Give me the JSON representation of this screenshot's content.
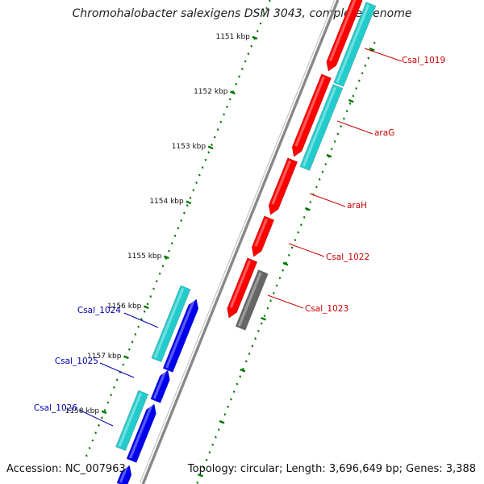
{
  "title": "Chromohalobacter salexigens DSM 3043, complete genome",
  "accession_text": "Accession: NC_007963",
  "summary_text": "Topology: circular; Length: 3,696,649 bp; Genes: 3,388",
  "colors": {
    "forward_cds": "#ff0000",
    "reverse_cds": "#0000ee",
    "gene_track": "#22cccc",
    "pseudogene": "#666666",
    "backbone": "#888888",
    "ticks": "#007700",
    "label_forward": "#cc0000",
    "label_reverse": "#0000aa"
  },
  "ticks": [
    {
      "label": "1151 kbp"
    },
    {
      "label": "1152 kbp"
    },
    {
      "label": "1153 kbp"
    },
    {
      "label": "1154 kbp"
    },
    {
      "label": "1155 kbp"
    },
    {
      "label": "1156 kbp"
    },
    {
      "label": "1157 kbp"
    },
    {
      "label": "1158 kbp"
    }
  ],
  "genes": [
    {
      "label": "Csal_1019",
      "strand": "forward"
    },
    {
      "label": "araG",
      "strand": "forward"
    },
    {
      "label": "araH",
      "strand": "forward"
    },
    {
      "label": "Csal_1022",
      "strand": "forward"
    },
    {
      "label": "Csal_1023",
      "strand": "forward"
    },
    {
      "label": "Csal_1024",
      "strand": "reverse"
    },
    {
      "label": "Csal_1025",
      "strand": "reverse"
    },
    {
      "label": "Csal_1026",
      "strand": "reverse"
    }
  ]
}
